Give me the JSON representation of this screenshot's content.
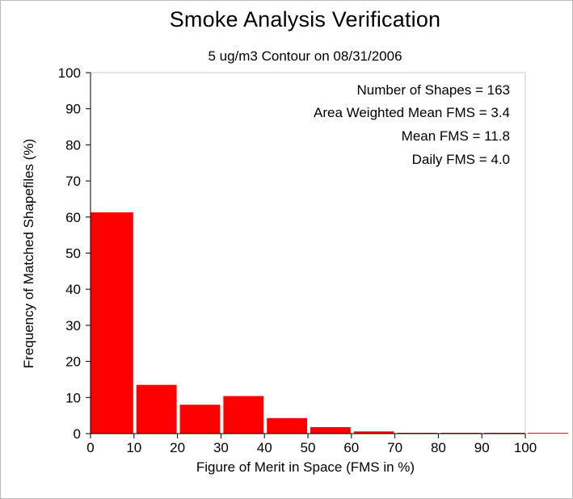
{
  "chart_data": {
    "type": "bar",
    "title": "Smoke Analysis Verification",
    "subtitle": "5 ug/m3 Contour on 08/31/2006",
    "xlabel": "Figure of Merit in Space (FMS in %)",
    "ylabel": "Frequency of Matched Shapefiles (%)",
    "xlim": [
      0,
      100
    ],
    "ylim": [
      0,
      100
    ],
    "xticks": [
      0,
      10,
      20,
      30,
      40,
      50,
      60,
      70,
      80,
      90,
      100
    ],
    "yticks": [
      0,
      10,
      20,
      30,
      40,
      50,
      60,
      70,
      80,
      90,
      100
    ],
    "bins": [
      {
        "start": 0,
        "end": 10,
        "value": 61.3
      },
      {
        "start": 10,
        "end": 20,
        "value": 13.5
      },
      {
        "start": 20,
        "end": 30,
        "value": 8.0
      },
      {
        "start": 30,
        "end": 40,
        "value": 10.4
      },
      {
        "start": 40,
        "end": 50,
        "value": 4.3
      },
      {
        "start": 50,
        "end": 60,
        "value": 1.8
      },
      {
        "start": 60,
        "end": 70,
        "value": 0.6
      },
      {
        "start": 70,
        "end": 80,
        "value": 0
      },
      {
        "start": 80,
        "end": 90,
        "value": 0
      },
      {
        "start": 90,
        "end": 100,
        "value": 0
      },
      {
        "start": 100,
        "end": 110,
        "value": 0
      }
    ],
    "bar_color": "#ff0000",
    "annotations": [
      "Number of Shapes = 163",
      "Area Weighted Mean FMS = 3.4",
      "Mean FMS = 11.8",
      "Daily FMS = 4.0"
    ],
    "grid": false,
    "legend": "none"
  }
}
